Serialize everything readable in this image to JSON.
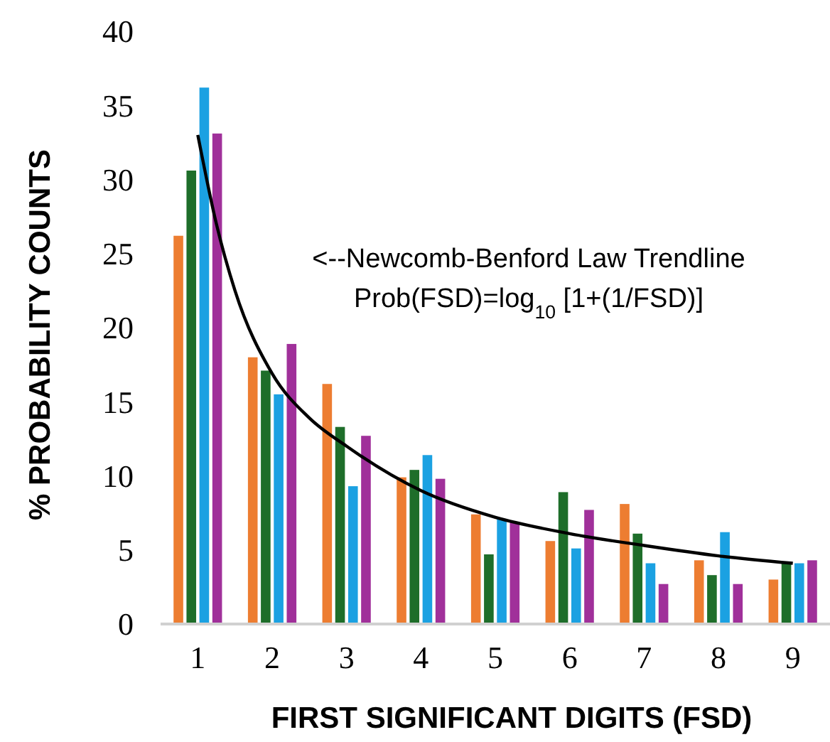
{
  "chart_data": {
    "type": "bar",
    "xlabel": "FIRST SIGNIFICANT DIGITS (FSD)",
    "ylabel": "% PROBABILITY COUNTS",
    "x": [
      1,
      2,
      3,
      4,
      5,
      6,
      7,
      8,
      9
    ],
    "xlim": [
      0.5,
      9.5
    ],
    "xticks": [
      1,
      2,
      3,
      4,
      5,
      6,
      7,
      8,
      9
    ],
    "ylim": [
      0,
      40
    ],
    "yticks": [
      0,
      5,
      10,
      15,
      20,
      25,
      30,
      35,
      40
    ],
    "grid": false,
    "annotations": [
      "<--Newcomb-Benford Law Trendline",
      "Prob(FSD)=log$_{10}$ [1+(1/FSD)]"
    ],
    "series": [
      {
        "color": "#ed7d31",
        "values": [
          26.2,
          18.0,
          16.2,
          9.9,
          7.4,
          5.6,
          8.1,
          4.3,
          3.0
        ]
      },
      {
        "color": "#1e6e2a",
        "values": [
          30.6,
          17.1,
          13.3,
          10.4,
          4.7,
          8.9,
          6.1,
          3.3,
          4.1
        ]
      },
      {
        "color": "#1ba1e2",
        "values": [
          36.2,
          15.5,
          9.3,
          11.4,
          7.1,
          5.1,
          4.1,
          6.2,
          4.1
        ]
      },
      {
        "color": "#a0309a",
        "values": [
          33.1,
          18.9,
          12.7,
          9.8,
          6.9,
          7.7,
          2.7,
          2.7,
          4.3
        ]
      },
      {
        "type": "line",
        "color": "#000000",
        "marker": "none",
        "line_style": "solid",
        "x": [
          1,
          1.25,
          1.5,
          2,
          2.5,
          3,
          4,
          5,
          6,
          7,
          8,
          9
        ],
        "values": [
          33.0,
          27.0,
          22.5,
          16.9,
          13.9,
          12.0,
          9.0,
          7.2,
          6.1,
          5.3,
          4.6,
          4.1
        ]
      }
    ]
  }
}
